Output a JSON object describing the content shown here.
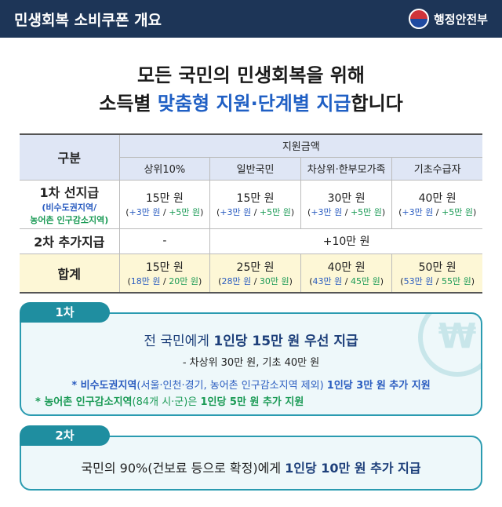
{
  "header": {
    "title": "민생회복 소비쿠폰 개요",
    "org": "행정안전부",
    "logo_icon": "taegeuk-icon"
  },
  "headline": {
    "line1": "모든 국민의 민생회복을 위해",
    "line2_pre": "소득별 ",
    "line2_acc": "맞춤형 지원·단계별 지급",
    "line2_post": "합니다"
  },
  "colors": {
    "navy": "#1d3557",
    "accent": "#1f5fc4",
    "teal": "#1f8ea0",
    "blue": "#2a5cc0",
    "green": "#1a9a55"
  },
  "table": {
    "h_category": "구분",
    "h_amount": "지원금액",
    "cols": [
      "상위10%",
      "일반국민",
      "차상위·한부모가족",
      "기초수급자"
    ],
    "row1": {
      "label": "1차 선지급",
      "note_blue": "(비수도권지역/",
      "note_green": "농어촌 인구감소지역)",
      "values": [
        "15만 원",
        "15만 원",
        "30만 원",
        "40만 원"
      ],
      "extra_blue": "+3만 원",
      "extra_green": "+5만 원"
    },
    "row2": {
      "label": "2차 추가지급",
      "first": "-",
      "rest": "+10만 원"
    },
    "total": {
      "label": "합계",
      "values": [
        "15만 원",
        "25만 원",
        "40만 원",
        "50만 원"
      ],
      "blue": [
        "18만 원",
        "28만 원",
        "43만 원",
        "53만 원"
      ],
      "green": [
        "20만 원",
        "30만 원",
        "45만 원",
        "55만 원"
      ]
    }
  },
  "phase1": {
    "tab": "1차",
    "won_icon": "won-icon",
    "l1_pre": "전 국민에게 ",
    "l1_b": "1인당 15만 원 우선 지급",
    "l2": "- 차상위 30만 원, 기초 40만 원",
    "l3_b1": "* 비수도권지역",
    "l3_m": "(서울·인천·경기, 농어촌 인구감소지역 제외) ",
    "l3_b2": "1인당 3만 원 추가 지원",
    "l4_g1": "* 농어촌 인구감소지역",
    "l4_m": "(84개 시·군)은 ",
    "l4_g2": "1인당 5만 원 추가 지원"
  },
  "phase2": {
    "tab": "2차",
    "pre": "국민의 90%(건보료 등으로 확정)에게 ",
    "b": "1인당 10만 원 추가 지급"
  }
}
